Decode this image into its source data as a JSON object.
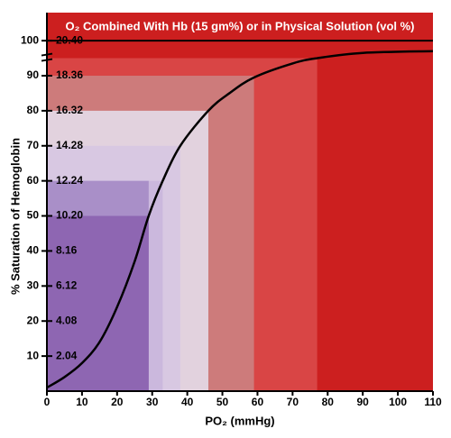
{
  "chart_data": {
    "type": "line",
    "title": "O₂ Combined With Hb (15 gm%) or in Physical Solution (vol %)",
    "x_label": "PO₂ (mmHg)",
    "y_label": "% Saturation of Hemoglobin",
    "x": [
      0,
      5,
      10,
      15,
      20,
      25,
      29,
      33,
      38,
      46,
      52,
      59,
      70,
      77,
      90,
      110
    ],
    "series": [
      {
        "name": "Saturation",
        "color": "#000000",
        "values": [
          1,
          4,
          8,
          14,
          24,
          37,
          50,
          60,
          70,
          80,
          85,
          89.5,
          93.5,
          95,
          96.5,
          97
        ]
      }
    ],
    "xlim": [
      0,
      110
    ],
    "xticks": [
      0,
      10,
      20,
      30,
      40,
      50,
      60,
      70,
      80,
      90,
      100,
      110
    ],
    "ylim": [
      0,
      108
    ],
    "yticks": [
      10,
      20,
      30,
      40,
      50,
      60,
      70,
      80,
      90,
      100
    ],
    "y2lim": [
      0,
      22.032
    ],
    "y2ticks": [
      2.04,
      4.08,
      6.12,
      8.16,
      {
        "value": 10.2,
        "label": "10.20"
      },
      12.24,
      14.28,
      16.32,
      18.36,
      {
        "value": 20.4,
        "label": "20.40"
      }
    ],
    "reference_line": 100,
    "background": "#cc1f1f",
    "regions": [
      {
        "x": 77,
        "y": 95,
        "color": "#d94545"
      },
      {
        "x": 59,
        "y": 90,
        "color": "#cd7b7b"
      },
      {
        "x": 46,
        "y": 80,
        "color": "#e2d2de"
      },
      {
        "x": 38,
        "y": 70,
        "color": "#d8c8e2"
      },
      {
        "x": 33,
        "y": 60,
        "color": "#cbb8dd"
      },
      {
        "x": 29,
        "y": 60,
        "color": "#a98fc8"
      },
      {
        "x": 29,
        "y": 50,
        "color": "#8e66b2"
      }
    ]
  }
}
